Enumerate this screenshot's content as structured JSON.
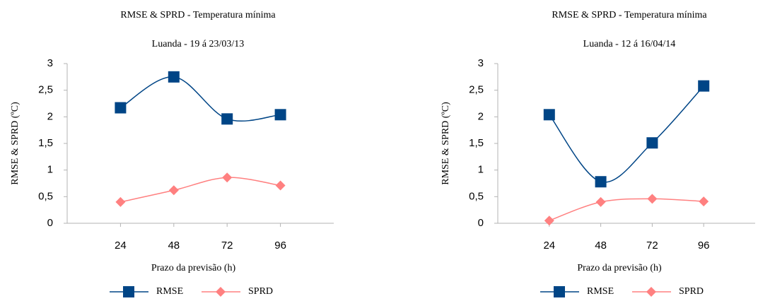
{
  "chart_data": [
    {
      "type": "line",
      "title": "RMSE & SPRD - Temperatura  mínima",
      "subtitle": "Luanda - 19 á 23/03/13",
      "x_label": "Prazo da previsão (h)",
      "y_label": "RMSE & SPRD (ºC)",
      "x": [
        24,
        48,
        72,
        96
      ],
      "xlim": [
        0,
        120
      ],
      "xticks": [
        24,
        48,
        72,
        96
      ],
      "ylim": [
        0,
        3
      ],
      "yticks": [
        0,
        {
          "value": 0.5,
          "label": "0,5"
        },
        1,
        {
          "value": 1.5,
          "label": "1,5"
        },
        2,
        {
          "value": 2.5,
          "label": "2,5"
        },
        3
      ],
      "grid": false,
      "legend": "bottom",
      "series": [
        {
          "name": "RMSE",
          "color": "#004586",
          "marker": "square",
          "values": [
            2.17,
            2.75,
            1.96,
            2.04
          ]
        },
        {
          "name": "SPRD",
          "color": "#ff8080",
          "marker": "diamond",
          "values": [
            0.4,
            0.62,
            0.86,
            0.71
          ]
        }
      ]
    },
    {
      "type": "line",
      "title": "RMSE & SPRD - Temperatura  mínima",
      "subtitle": "Luanda - 12 á 16/04/14",
      "x_label": "Prazo da previsão (h)",
      "y_label": "RMSE & SPRD (ºC)",
      "x": [
        24,
        48,
        72,
        96
      ],
      "xlim": [
        0,
        120
      ],
      "xticks": [
        24,
        48,
        72,
        96
      ],
      "ylim": [
        0,
        3
      ],
      "yticks": [
        0,
        {
          "value": 0.5,
          "label": "0,5"
        },
        1,
        {
          "value": 1.5,
          "label": "1,5"
        },
        2,
        {
          "value": 2.5,
          "label": "2,5"
        },
        3
      ],
      "grid": false,
      "legend": "bottom",
      "series": [
        {
          "name": "RMSE",
          "color": "#004586",
          "marker": "square",
          "values": [
            2.04,
            0.78,
            1.51,
            2.58
          ]
        },
        {
          "name": "SPRD",
          "color": "#ff8080",
          "marker": "diamond",
          "values": [
            0.05,
            0.4,
            0.46,
            0.41
          ]
        }
      ]
    }
  ]
}
